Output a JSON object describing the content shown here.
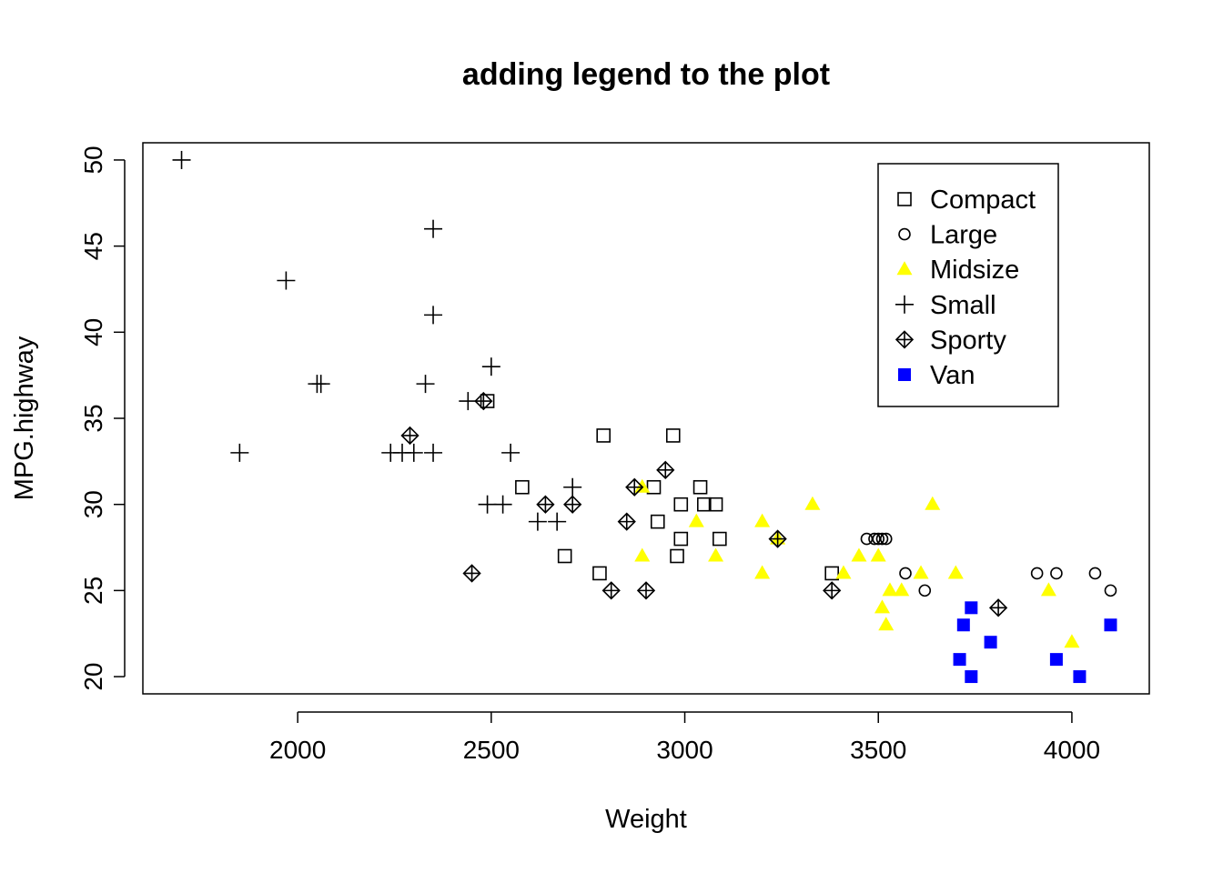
{
  "chart_data": {
    "type": "scatter",
    "title": "adding legend to the plot",
    "xlabel": "Weight",
    "ylabel": "MPG.highway",
    "xlim": [
      1600,
      4200
    ],
    "ylim": [
      19,
      51
    ],
    "xticks": [
      2000,
      2500,
      3000,
      3500,
      4000
    ],
    "yticks": [
      20,
      25,
      30,
      35,
      40,
      45,
      50
    ],
    "grid": false,
    "legend_position": "top-right",
    "series": [
      {
        "name": "Compact",
        "marker": "square-open",
        "color": "#000000",
        "points": [
          [
            2490,
            36
          ],
          [
            2580,
            31
          ],
          [
            2690,
            27
          ],
          [
            2780,
            26
          ],
          [
            2790,
            34
          ],
          [
            2920,
            31
          ],
          [
            2930,
            29
          ],
          [
            2980,
            27
          ],
          [
            2990,
            28
          ],
          [
            2990,
            30
          ],
          [
            2970,
            34
          ],
          [
            3040,
            31
          ],
          [
            3050,
            30
          ],
          [
            3080,
            30
          ],
          [
            3090,
            28
          ],
          [
            3380,
            26
          ]
        ]
      },
      {
        "name": "Large",
        "marker": "circle-open",
        "color": "#000000",
        "points": [
          [
            3470,
            28
          ],
          [
            3490,
            28
          ],
          [
            3500,
            28
          ],
          [
            3510,
            28
          ],
          [
            3520,
            28
          ],
          [
            3570,
            26
          ],
          [
            3620,
            25
          ],
          [
            3910,
            26
          ],
          [
            3960,
            26
          ],
          [
            4060,
            26
          ],
          [
            4100,
            25
          ]
        ]
      },
      {
        "name": "Midsize",
        "marker": "triangle-filled",
        "color": "#FFFF00",
        "points": [
          [
            2890,
            27
          ],
          [
            2890,
            31
          ],
          [
            3030,
            29
          ],
          [
            3080,
            27
          ],
          [
            3200,
            29
          ],
          [
            3200,
            26
          ],
          [
            3240,
            28
          ],
          [
            3330,
            30
          ],
          [
            3410,
            26
          ],
          [
            3450,
            27
          ],
          [
            3500,
            27
          ],
          [
            3510,
            24
          ],
          [
            3520,
            23
          ],
          [
            3530,
            25
          ],
          [
            3560,
            25
          ],
          [
            3610,
            26
          ],
          [
            3640,
            30
          ],
          [
            3700,
            26
          ],
          [
            3940,
            25
          ],
          [
            4000,
            22
          ]
        ]
      },
      {
        "name": "Small",
        "marker": "plus",
        "color": "#000000",
        "points": [
          [
            1700,
            50
          ],
          [
            1850,
            33
          ],
          [
            1970,
            43
          ],
          [
            2050,
            37
          ],
          [
            2060,
            37
          ],
          [
            2240,
            33
          ],
          [
            2270,
            33
          ],
          [
            2300,
            33
          ],
          [
            2330,
            37
          ],
          [
            2350,
            33
          ],
          [
            2350,
            46
          ],
          [
            2350,
            41
          ],
          [
            2440,
            36
          ],
          [
            2490,
            30
          ],
          [
            2500,
            38
          ],
          [
            2530,
            30
          ],
          [
            2550,
            33
          ],
          [
            2620,
            29
          ],
          [
            2670,
            29
          ],
          [
            2710,
            31
          ]
        ]
      },
      {
        "name": "Sporty",
        "marker": "diamond-plus",
        "color": "#000000",
        "points": [
          [
            2290,
            34
          ],
          [
            2450,
            26
          ],
          [
            2480,
            36
          ],
          [
            2640,
            30
          ],
          [
            2710,
            30
          ],
          [
            2810,
            25
          ],
          [
            2850,
            29
          ],
          [
            2870,
            31
          ],
          [
            2900,
            25
          ],
          [
            2950,
            32
          ],
          [
            3240,
            28
          ],
          [
            3380,
            25
          ],
          [
            3810,
            24
          ]
        ]
      },
      {
        "name": "Van",
        "marker": "square-filled",
        "color": "#0000FF",
        "points": [
          [
            3710,
            21
          ],
          [
            3720,
            23
          ],
          [
            3740,
            20
          ],
          [
            3740,
            24
          ],
          [
            3790,
            22
          ],
          [
            3960,
            21
          ],
          [
            4020,
            20
          ],
          [
            4100,
            23
          ]
        ]
      }
    ]
  }
}
